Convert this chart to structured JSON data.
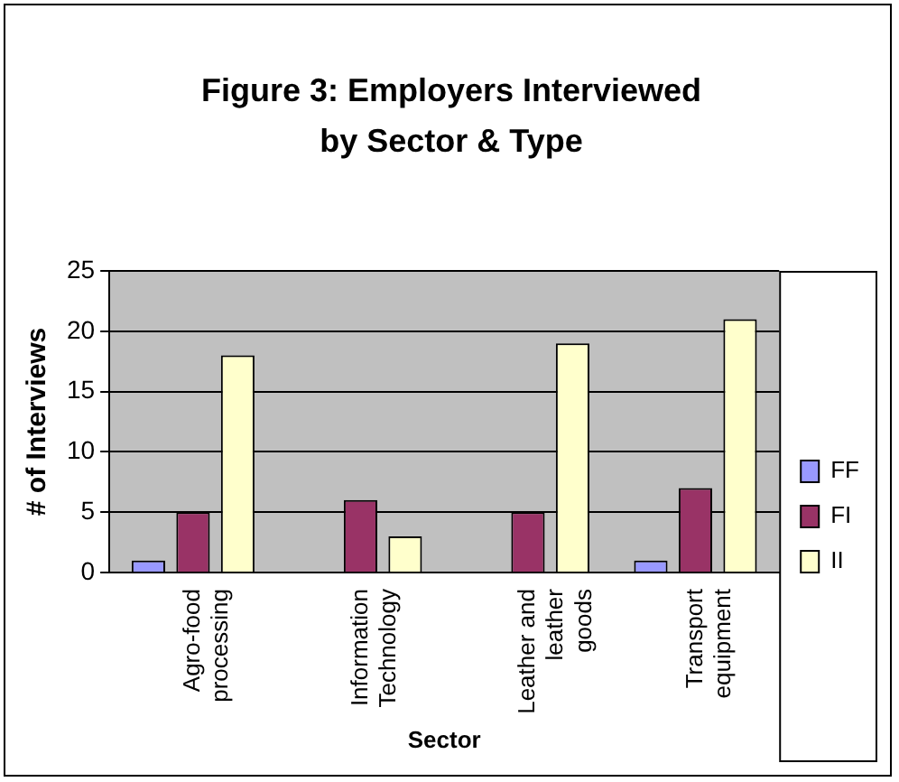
{
  "chart_data": {
    "type": "bar",
    "title": "Figure 3:  Employers Interviewed by Sector & Type",
    "xlabel": "Sector",
    "ylabel": "# of Interviews",
    "categories": [
      "Agro-food processing",
      "Information Technology",
      "Leather and leather goods",
      "Transport equipment"
    ],
    "series": [
      {
        "name": "FF",
        "color": "#9999ff",
        "values": [
          1,
          0,
          0,
          1
        ]
      },
      {
        "name": "FI",
        "color": "#993366",
        "values": [
          5,
          6,
          5,
          7
        ]
      },
      {
        "name": "II",
        "color": "#ffffcc",
        "values": [
          18,
          3,
          19,
          21
        ]
      }
    ],
    "ylim": [
      0,
      25
    ],
    "yticks": [
      0,
      5,
      10,
      15,
      20,
      25
    ],
    "grid": "y",
    "legend": "right"
  }
}
